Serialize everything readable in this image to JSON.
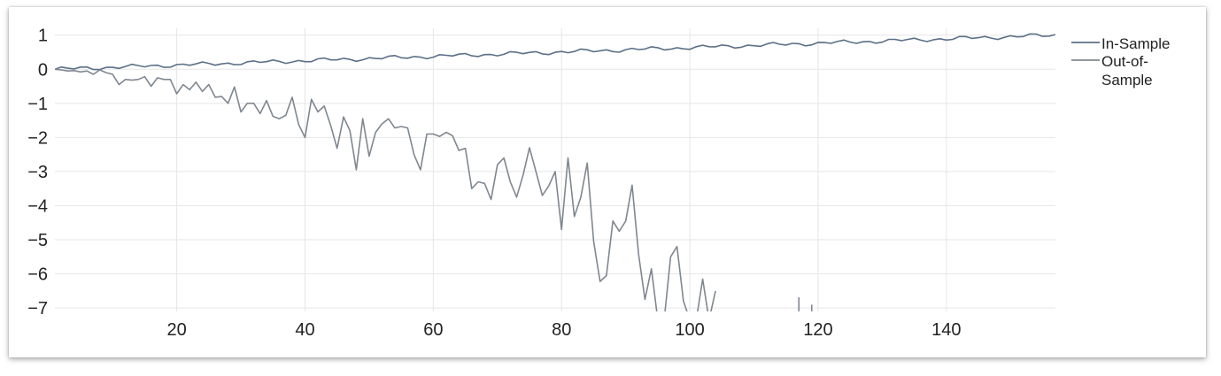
{
  "chart_data": {
    "type": "line",
    "title": "",
    "xlabel": "",
    "ylabel": "",
    "xlim": [
      1,
      157
    ],
    "ylim": [
      -7.1,
      1.2
    ],
    "x_ticks": [
      20,
      40,
      60,
      80,
      100,
      120,
      140
    ],
    "y_ticks": [
      1,
      0,
      -1,
      -2,
      -3,
      -4,
      -5,
      -6,
      -7
    ],
    "x_tick_labels": [
      "20",
      "40",
      "60",
      "80",
      "100",
      "120",
      "140"
    ],
    "y_tick_labels": [
      "1",
      "0",
      "−1",
      "−2",
      "−3",
      "−4",
      "−5",
      "−6",
      "−7"
    ],
    "grid": true,
    "legend_position": "top-right",
    "series": [
      {
        "name": "In-Sample",
        "color": "#5b6f86",
        "x": [
          1,
          157
        ],
        "values": [
          0.0,
          1.0
        ]
      },
      {
        "name": "Out-of-Sample",
        "color": "#7f8790",
        "x": [
          1,
          2,
          3,
          4,
          5,
          6,
          7,
          8,
          9,
          10,
          11,
          12,
          13,
          14,
          15,
          16,
          17,
          18,
          19,
          20,
          21,
          22,
          23,
          24,
          25,
          26,
          27,
          28,
          29,
          30,
          31,
          32,
          33,
          34,
          35,
          36,
          37,
          38,
          39,
          40,
          41,
          42,
          43,
          44,
          45,
          46,
          47,
          48,
          49,
          50,
          51,
          52,
          53,
          54,
          55,
          56,
          57,
          58,
          59,
          60,
          61,
          62,
          63,
          64,
          65,
          66,
          67,
          68,
          69,
          70,
          71,
          72,
          73,
          74,
          75,
          76,
          77,
          78,
          79,
          80,
          81,
          82,
          83,
          84,
          85,
          86,
          87,
          88,
          89,
          90,
          91,
          92,
          93,
          94,
          95,
          96,
          97,
          98,
          99,
          100,
          101,
          102,
          103,
          104,
          117,
          119
        ],
        "values": [
          0.0,
          -0.02,
          -0.05,
          -0.04,
          -0.08,
          -0.05,
          -0.15,
          -0.02,
          -0.1,
          -0.15,
          -0.45,
          -0.3,
          -0.32,
          -0.3,
          -0.22,
          -0.5,
          -0.25,
          -0.3,
          -0.3,
          -0.72,
          -0.45,
          -0.6,
          -0.38,
          -0.65,
          -0.45,
          -0.82,
          -0.8,
          -1.0,
          -0.52,
          -1.25,
          -1.0,
          -1.0,
          -1.3,
          -0.92,
          -1.38,
          -1.45,
          -1.35,
          -0.82,
          -1.62,
          -2.0,
          -0.88,
          -1.25,
          -1.08,
          -1.65,
          -2.32,
          -1.4,
          -1.8,
          -2.95,
          -1.45,
          -2.55,
          -1.85,
          -1.6,
          -1.45,
          -1.72,
          -1.68,
          -1.72,
          -2.5,
          -2.95,
          -1.9,
          -1.9,
          -1.97,
          -1.85,
          -1.95,
          -2.38,
          -2.32,
          -3.5,
          -3.3,
          -3.35,
          -3.82,
          -2.8,
          -2.6,
          -3.3,
          -3.75,
          -3.1,
          -2.3,
          -3.0,
          -3.7,
          -3.42,
          -3.0,
          -4.7,
          -2.6,
          -4.32,
          -3.75,
          -2.75,
          -5.05,
          -6.22,
          -6.05,
          -4.45,
          -4.75,
          -4.45,
          -3.4,
          -5.42,
          -6.75,
          -5.85,
          -7.35,
          -7.35,
          -5.5,
          -5.2,
          -6.8,
          -7.35,
          -7.35,
          -6.15,
          -7.35,
          -6.5,
          -7.35,
          -6.9
        ]
      }
    ]
  }
}
